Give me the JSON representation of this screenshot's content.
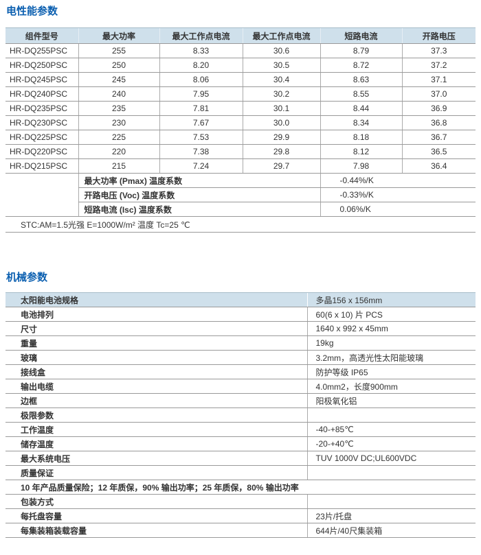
{
  "colors": {
    "accent_blue": "#0b5fb0",
    "header_bg": "#cfe0eb",
    "header_edge": "#a7bcc9",
    "border_dark": "#999999",
    "border_light": "#aaaaaa",
    "text": "#333333"
  },
  "sections": {
    "electrical": {
      "title": "电性能参数",
      "table": {
        "headers": [
          "组件型号",
          "最大功率",
          "最大工作点电流",
          "最大工作点电流",
          "短路电流",
          "开路电压"
        ],
        "rows": [
          [
            "HR-DQ255PSC",
            "255",
            "8.33",
            "30.6",
            "8.79",
            "37.3"
          ],
          [
            "HR-DQ250PSC",
            "250",
            "8.20",
            "30.5",
            "8.72",
            "37.2"
          ],
          [
            "HR-DQ245PSC",
            "245",
            "8.06",
            "30.4",
            "8.63",
            "37.1"
          ],
          [
            "HR-DQ240PSC",
            "240",
            "7.95",
            "30.2",
            "8.55",
            "37.0"
          ],
          [
            "HR-DQ235PSC",
            "235",
            "7.81",
            "30.1",
            "8.44",
            "36.9"
          ],
          [
            "HR-DQ230PSC",
            "230",
            "7.67",
            "30.0",
            "8.34",
            "36.8"
          ],
          [
            "HR-DQ225PSC",
            "225",
            "7.53",
            "29.9",
            "8.18",
            "36.7"
          ],
          [
            "HR-DQ220PSC",
            "220",
            "7.38",
            "29.8",
            "8.12",
            "36.5"
          ],
          [
            "HR-DQ215PSC",
            "215",
            "7.24",
            "29.7",
            "7.98",
            "36.4"
          ]
        ],
        "coefficients": [
          {
            "label": "最大功率 (Pmax) 温度系数",
            "value": "-0.44%/K"
          },
          {
            "label": "开路电压 (Voc) 温度系数",
            "value": "-0.33%/K"
          },
          {
            "label": "短路电流 (Isc) 温度系数",
            "value": "0.06%/K"
          }
        ],
        "stc_note": "STC:AM=1.5光强 E=1000W/m² 温度 Tc=25 ℃"
      }
    },
    "mechanical": {
      "title": "机械参数",
      "rows": [
        {
          "label": "太阳能电池规格",
          "value": "多晶156 x 156mm",
          "style": "highlight"
        },
        {
          "label": "电池排列",
          "value": "60(6 x 10) 片 PCS"
        },
        {
          "label": "尺寸",
          "value": "1640 x 992 x 45mm"
        },
        {
          "label": "重量",
          "value": "19kg"
        },
        {
          "label": "玻璃",
          "value": "3.2mm，高透光性太阳能玻璃"
        },
        {
          "label": "接线盒",
          "value": "防护等级 IP65"
        },
        {
          "label": "输出电缆",
          "value": "4.0mm2，长度900mm"
        },
        {
          "label": "边框",
          "value": "阳极氧化铝"
        },
        {
          "label": "极限参数",
          "value": ""
        },
        {
          "label": "工作温度",
          "value": "-40-+85℃"
        },
        {
          "label": "储存温度",
          "value": "-20-+40℃"
        },
        {
          "label": "最大系统电压",
          "value": "TUV 1000V DC;UL600VDC"
        },
        {
          "label": "质量保证",
          "value": ""
        },
        {
          "label": "10 年产品质量保险；12 年质保，90% 输出功率；25 年质保，80% 输出功率",
          "value": "",
          "style": "fullwidth"
        },
        {
          "label": "包装方式",
          "value": ""
        },
        {
          "label": "每托盘容量",
          "value": "23片/托盘"
        },
        {
          "label": "每集装箱装载容量",
          "value": "644片/40尺集装箱"
        }
      ]
    }
  }
}
